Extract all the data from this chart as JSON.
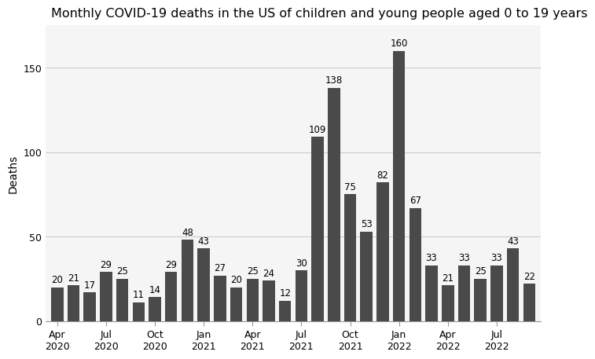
{
  "title": "Monthly COVID-19 deaths in the US of children and young people aged 0 to 19 years",
  "ylabel": "Deaths",
  "bar_color": "#4a4a4a",
  "background_color": "#ffffff",
  "plot_background_color": "#f5f5f5",
  "grid_color": "#cccccc",
  "ylim": [
    0,
    175
  ],
  "yticks": [
    0,
    50,
    100,
    150
  ],
  "values": [
    20,
    21,
    17,
    29,
    25,
    11,
    14,
    29,
    48,
    43,
    27,
    20,
    25,
    24,
    12,
    30,
    109,
    138,
    75,
    53,
    82,
    160,
    67,
    33,
    21,
    33,
    25,
    33,
    43,
    22
  ],
  "tick_label_indices": [
    0,
    3,
    6,
    9,
    12,
    15,
    18,
    21,
    24,
    27
  ],
  "tick_labels": [
    "Apr\n2020",
    "Jul\n2020",
    "Oct\n2020",
    "Jan\n2021",
    "Apr\n2021",
    "Jul\n2021",
    "Oct\n2021",
    "Jan\n2022",
    "Apr\n2022",
    "Jul\n2022"
  ],
  "title_fontsize": 11.5,
  "label_fontsize": 10,
  "tick_fontsize": 9,
  "bar_label_fontsize": 8.5
}
